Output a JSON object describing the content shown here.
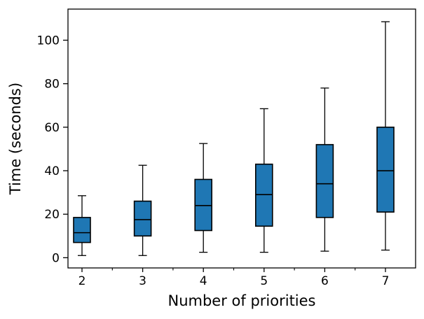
{
  "chart_data": {
    "type": "boxplot",
    "title": "",
    "xlabel": "Number of priorities",
    "ylabel": "Time (seconds)",
    "categories": [
      "2",
      "3",
      "4",
      "5",
      "6",
      "7"
    ],
    "yticks": [
      0,
      20,
      40,
      60,
      80,
      100
    ],
    "ylim": [
      -4.7,
      114.3
    ],
    "grid": false,
    "legend": "none",
    "box_fill_color": "#1f77b4",
    "box_edge_color": "#000000",
    "median_color": "#000000",
    "boxes": [
      {
        "category": "2",
        "whislo": 1.0,
        "q1": 7.0,
        "med": 11.5,
        "q3": 18.5,
        "whishi": 28.5
      },
      {
        "category": "3",
        "whislo": 1.0,
        "q1": 10.0,
        "med": 17.5,
        "q3": 26.0,
        "whishi": 42.5
      },
      {
        "category": "4",
        "whislo": 2.5,
        "q1": 12.5,
        "med": 24.0,
        "q3": 36.0,
        "whishi": 52.5
      },
      {
        "category": "5",
        "whislo": 2.5,
        "q1": 14.5,
        "med": 29.0,
        "q3": 43.0,
        "whishi": 68.5
      },
      {
        "category": "6",
        "whislo": 3.0,
        "q1": 18.5,
        "med": 34.0,
        "q3": 52.0,
        "whishi": 78.0
      },
      {
        "category": "7",
        "whislo": 3.5,
        "q1": 21.0,
        "med": 40.0,
        "q3": 60.0,
        "whishi": 108.5
      }
    ]
  }
}
